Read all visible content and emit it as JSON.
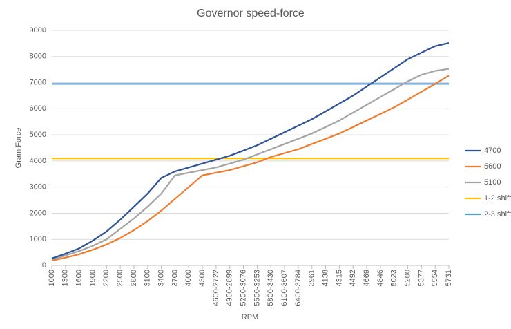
{
  "chart_data": {
    "type": "line",
    "title": "Governor speed-force",
    "x_label": "RPM",
    "y_label": "Gram Force",
    "categories": [
      "1000",
      "1300",
      "1600",
      "1900",
      "2200",
      "2500",
      "2800",
      "3100",
      "3400",
      "3700",
      "4000",
      "4300",
      "4600-2722",
      "4900-2899",
      "5200-3076",
      "5500-3253",
      "5800-3430",
      "6100-3607",
      "6400-3784",
      "3961",
      "4138",
      "4315",
      "4492",
      "4669",
      "4846",
      "5023",
      "5200",
      "5377",
      "5554",
      "5731"
    ],
    "series": [
      {
        "name": "4700",
        "color": "#2f5597",
        "values": [
          270,
          450,
          650,
          950,
          1300,
          1750,
          2250,
          2750,
          3350,
          3600,
          3750,
          3900,
          4050,
          4200,
          4400,
          4600,
          4850,
          5100,
          5350,
          5600,
          5900,
          6200,
          6500,
          6850,
          7200,
          7550,
          7900,
          8150,
          8400,
          8520
        ]
      },
      {
        "name": "5600",
        "color": "#ed7d31",
        "values": [
          180,
          300,
          430,
          600,
          800,
          1050,
          1350,
          1700,
          2100,
          2550,
          3000,
          3450,
          3550,
          3650,
          3800,
          3950,
          4150,
          4300,
          4450,
          4650,
          4850,
          5050,
          5300,
          5550,
          5800,
          6050,
          6350,
          6650,
          6950,
          7270
        ]
      },
      {
        "name": "5100",
        "color": "#a5a5a5",
        "values": [
          220,
          380,
          550,
          750,
          1000,
          1400,
          1800,
          2250,
          2750,
          3450,
          3550,
          3650,
          3750,
          3900,
          4050,
          4250,
          4450,
          4650,
          4850,
          5050,
          5300,
          5550,
          5850,
          6150,
          6450,
          6750,
          7050,
          7300,
          7450,
          7530
        ]
      },
      {
        "name": "1-2 shift",
        "color": "#ffc000",
        "values": [
          4100,
          4100,
          4100,
          4100,
          4100,
          4100,
          4100,
          4100,
          4100,
          4100,
          4100,
          4100,
          4100,
          4100,
          4100,
          4100,
          4100,
          4100,
          4100,
          4100,
          4100,
          4100,
          4100,
          4100,
          4100,
          4100,
          4100,
          4100,
          4100,
          4100
        ]
      },
      {
        "name": "2-3 shift",
        "color": "#5b9bd5",
        "values": [
          6950,
          6950,
          6950,
          6950,
          6950,
          6950,
          6950,
          6950,
          6950,
          6950,
          6950,
          6950,
          6950,
          6950,
          6950,
          6950,
          6950,
          6950,
          6950,
          6950,
          6950,
          6950,
          6950,
          6950,
          6950,
          6950,
          6950,
          6950,
          6950,
          6950
        ]
      }
    ],
    "ylim": [
      0,
      9000
    ],
    "yticks": [
      0,
      1000,
      2000,
      3000,
      4000,
      5000,
      6000,
      7000,
      8000,
      9000
    ],
    "grid": true,
    "legend": "right"
  }
}
